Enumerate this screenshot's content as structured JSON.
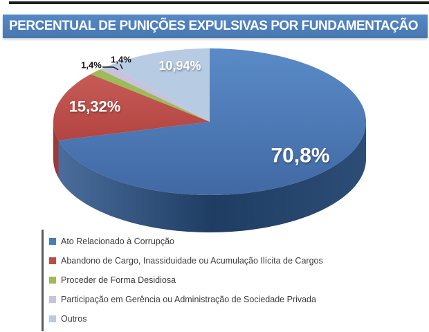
{
  "title": {
    "text": "PERCENTUAL DE PUNIÇÕES EXPULSIVAS POR FUNDAMENTAÇÃO"
  },
  "colors": {
    "title_bar": "#4d80bc",
    "title_text": "#ffffff",
    "top_strip": "#1c1c1c",
    "legend_rule": "#58595a",
    "legend_text": "#3b3b3b",
    "background": "#ffffff",
    "leader_line": "#141414"
  },
  "chart_data": {
    "type": "pie",
    "is_3d": true,
    "direction": "clockwise",
    "start_angle_deg": 0,
    "title": "PERCENTUAL DE PUNIÇÕES EXPULSIVAS POR FUNDAMENTAÇÃO",
    "value_suffix": "%",
    "decimal_separator": ",",
    "legend_position": "bottom-left",
    "slices": [
      {
        "label": "Ato Relacionado à Corrupção",
        "value": 70.8,
        "display": "70,8%",
        "color": "#4a7cba",
        "top_gradient": [
          "#5a8bc7",
          "#4169a4"
        ],
        "side_color": "#24466e",
        "side_gradient": [
          "#4a6d9c",
          "#1f3d63",
          "#2c4d76"
        ]
      },
      {
        "label": "Abandono de Cargo, Inassiduidade ou Acumulação Ilícita de Cargos",
        "value": 15.32,
        "display": "15,32%",
        "color": "#bf4b48",
        "top_gradient": [
          "#c65b56",
          "#b34441"
        ],
        "side_color": "#9c3a37"
      },
      {
        "label": "Proceder de Forma Desidiosa",
        "value": 1.4,
        "display": "1,4%",
        "color": "#9cbb59",
        "side_color": "#7a9540"
      },
      {
        "label": "Participação em Gerência ou Administração de Sociedade Privada",
        "value": 1.4,
        "display": "1,4%",
        "color": "#c9c2dc",
        "side_color": "#a59cc0"
      },
      {
        "label": "Outros",
        "value": 10.94,
        "display": "10,94%",
        "color": "#b7cbe3",
        "side_color": "#93adc9"
      }
    ]
  }
}
